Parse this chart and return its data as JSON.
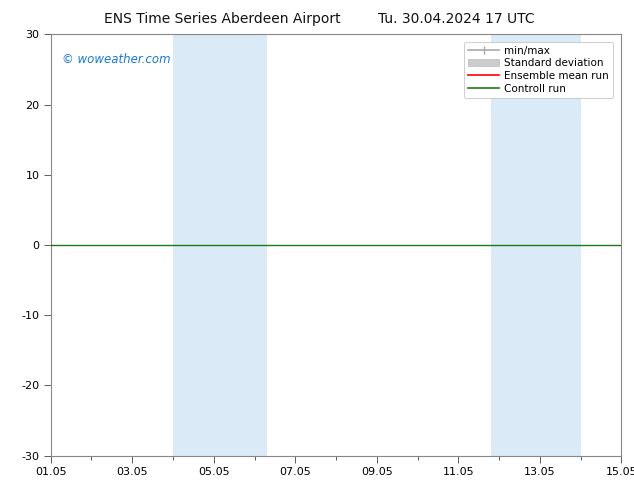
{
  "title_left": "ENS Time Series Aberdeen Airport",
  "title_right": "Tu. 30.04.2024 17 UTC",
  "watermark": "© woweather.com",
  "ylim": [
    -30,
    30
  ],
  "yticks": [
    -30,
    -20,
    -10,
    0,
    10,
    20,
    30
  ],
  "xtick_labels": [
    "01.05",
    "03.05",
    "05.05",
    "07.05",
    "09.05",
    "11.05",
    "13.05",
    "15.05"
  ],
  "xtick_positions": [
    0,
    2,
    4,
    6,
    8,
    10,
    12,
    14
  ],
  "x_total_days": 14,
  "shaded_bands": [
    {
      "x_start": 3.0,
      "x_end": 5.3
    },
    {
      "x_start": 10.8,
      "x_end": 13.0
    }
  ],
  "shaded_color": "#daeaf7",
  "hline_y": 0,
  "hline_color": "#1a7a1a",
  "background_color": "#ffffff",
  "plot_bg_color": "#ffffff",
  "legend_items": [
    {
      "label": "min/max",
      "color": "#aaaaaa",
      "style": "line_with_caps"
    },
    {
      "label": "Standard deviation",
      "color": "#cccccc",
      "style": "filled_box"
    },
    {
      "label": "Ensemble mean run",
      "color": "#ff0000",
      "style": "line"
    },
    {
      "label": "Controll run",
      "color": "#1a7a1a",
      "style": "line"
    }
  ],
  "figsize": [
    6.34,
    4.9
  ],
  "dpi": 100,
  "watermark_color": "#1a7acd",
  "spine_color": "#888888",
  "tick_color": "#444444"
}
